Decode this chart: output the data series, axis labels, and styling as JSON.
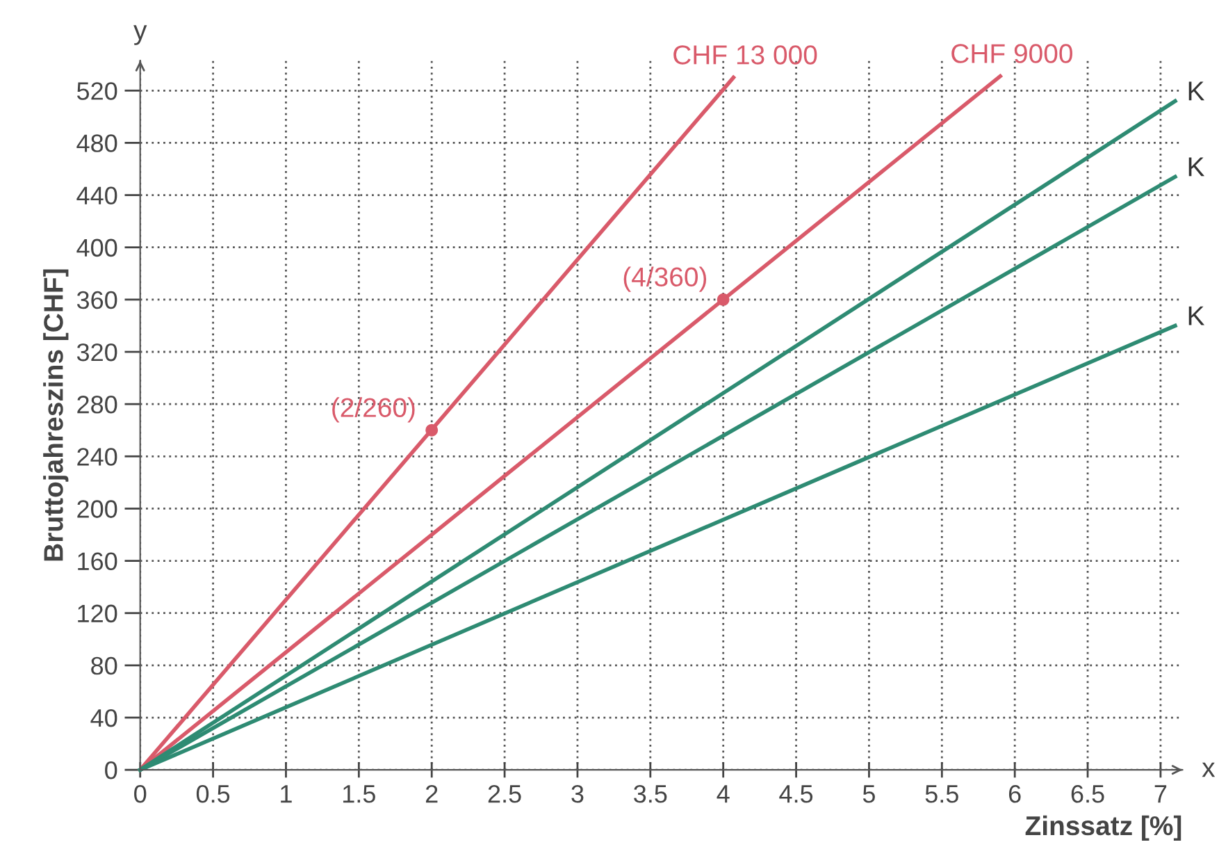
{
  "chart_data": {
    "type": "line",
    "xlabel": "Zinssatz [%]",
    "ylabel": "Bruttojahreszins [CHF]",
    "xlim": [
      0,
      7.15
    ],
    "ylim": [
      0,
      543
    ],
    "xticks": [
      0,
      0.5,
      1,
      1.5,
      2,
      2.5,
      3,
      3.5,
      4,
      4.5,
      5,
      5.5,
      6,
      6.5,
      7
    ],
    "yticks": [
      0,
      40,
      80,
      120,
      160,
      200,
      240,
      280,
      320,
      360,
      400,
      440,
      480,
      520
    ],
    "grid": true,
    "legend": false,
    "marker": "none",
    "line_style": "solid",
    "series": [
      {
        "name": "CHF 13 000",
        "color": "#d95a6a",
        "x": [
          0,
          4.07
        ],
        "values": [
          0,
          530
        ]
      },
      {
        "name": "CHF 9000",
        "color": "#d95a6a",
        "x": [
          0,
          5.9
        ],
        "values": [
          0,
          531
        ]
      },
      {
        "name": "K",
        "color": "#2e8b73",
        "x": [
          0,
          7.1
        ],
        "values": [
          0,
          512
        ]
      },
      {
        "name": "K",
        "color": "#2e8b73",
        "x": [
          0,
          7.1
        ],
        "values": [
          0,
          454
        ]
      },
      {
        "name": "K",
        "color": "#2e8b73",
        "x": [
          0,
          7.1
        ],
        "values": [
          0,
          340
        ]
      },
      {
        "type": "scatter",
        "color": "#d95a6a",
        "x": [
          2,
          4
        ],
        "values": [
          260,
          360
        ],
        "marker": "circle"
      }
    ],
    "annotations": [
      {
        "text": "(2/260)",
        "x": 2,
        "y": 260
      },
      {
        "text": "(4/360)",
        "x": 4,
        "y": 360
      },
      "x",
      "y"
    ]
  }
}
